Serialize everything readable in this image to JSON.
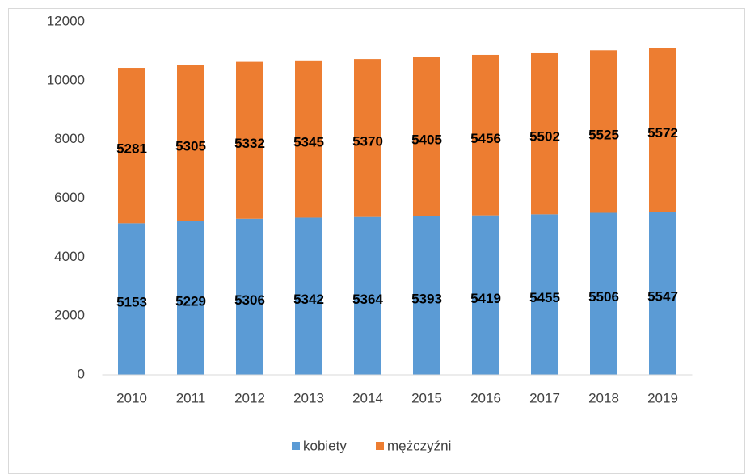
{
  "chart_data": {
    "type": "stacked_bar",
    "categories": [
      "2010",
      "2011",
      "2012",
      "2013",
      "2014",
      "2015",
      "2016",
      "2017",
      "2018",
      "2019"
    ],
    "series": [
      {
        "name": "kobiety",
        "color": "#5b9bd5",
        "values": [
          5153,
          5229,
          5306,
          5342,
          5364,
          5393,
          5419,
          5455,
          5506,
          5547
        ]
      },
      {
        "name": "mężczyźni",
        "color": "#ed7d31",
        "values": [
          5281,
          5305,
          5332,
          5345,
          5370,
          5405,
          5456,
          5502,
          5525,
          5572
        ]
      }
    ],
    "ylim": [
      0,
      12000
    ],
    "yticks": [
      0,
      2000,
      4000,
      6000,
      8000,
      10000,
      12000
    ],
    "grid": false,
    "legend": "bottom"
  }
}
